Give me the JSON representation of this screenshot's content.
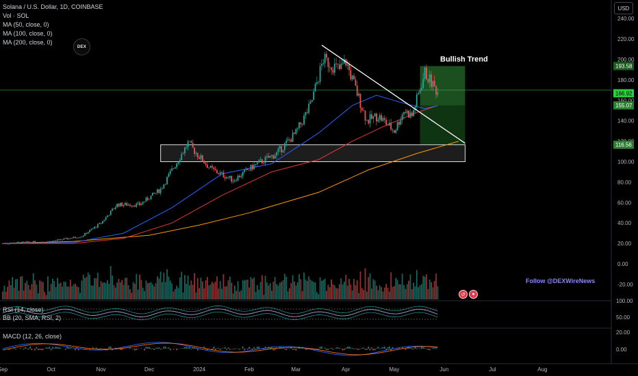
{
  "header": {
    "symbol_title": "Solana / U.S. Dollar, 1D, COINBASE",
    "volume_label": "Vol · SOL",
    "ma_labels": [
      "MA (50, close, 0)",
      "MA (100, close, 0)",
      "MA (200, close, 0)"
    ],
    "logo_text": "DEX",
    "currency": "USD"
  },
  "annotations": {
    "bullish_label": "Bullish Trend",
    "follow_text": "Follow @DEXWireNews"
  },
  "rsi_panel": {
    "rsi_label": "RSI (14, close)",
    "bb_label": "BB (20, SMA, RSI, 2)",
    "ticks": [
      "100.00",
      "50.00"
    ]
  },
  "macd_panel": {
    "label": "MACD (12, 26, close)",
    "ticks": [
      "20.00",
      "0.00"
    ]
  },
  "colors": {
    "up": "#26a69a",
    "down": "#ef5350",
    "ma50": "#2962ff",
    "ma100": "#e53935",
    "ma200": "#ff9800",
    "tp_box": "#1b5e20",
    "current_line": "#4caf50",
    "price_tag_green": "#2ecc40",
    "macd_line": "#2962ff",
    "signal_line": "#ff6d00"
  },
  "chart_data": {
    "type": "candlestick",
    "ticker": "SOL/USD",
    "interval": "1D",
    "x_ticks": [
      "Sep",
      "Oct",
      "Nov",
      "Dec",
      "2024",
      "Feb",
      "Mar",
      "Apr",
      "May",
      "Jun",
      "Jul",
      "Aug"
    ],
    "y_ticks": [
      "240.00",
      "220.00",
      "200.00",
      "180.00",
      "160.00",
      "140.00",
      "120.00",
      "100.00",
      "80.00",
      "60.00",
      "40.00",
      "20.00",
      "0.00",
      "-20.00"
    ],
    "ylim": [
      -30,
      245
    ],
    "price_path": [
      [
        "2023-09-01",
        20
      ],
      [
        "2023-10-01",
        22
      ],
      [
        "2023-10-20",
        27
      ],
      [
        "2023-11-01",
        40
      ],
      [
        "2023-11-11",
        58
      ],
      [
        "2023-11-25",
        58
      ],
      [
        "2023-12-08",
        73
      ],
      [
        "2023-12-25",
        118
      ],
      [
        "2024-01-01",
        105
      ],
      [
        "2024-01-08",
        93
      ],
      [
        "2024-01-22",
        82
      ],
      [
        "2024-02-05",
        97
      ],
      [
        "2024-02-18",
        108
      ],
      [
        "2024-03-01",
        128
      ],
      [
        "2024-03-10",
        155
      ],
      [
        "2024-03-18",
        200
      ],
      [
        "2024-03-28",
        190
      ],
      [
        "2024-04-01",
        198
      ],
      [
        "2024-04-14",
        140
      ],
      [
        "2024-04-21",
        145
      ],
      [
        "2024-05-01",
        130
      ],
      [
        "2024-05-07",
        150
      ],
      [
        "2024-05-12",
        145
      ],
      [
        "2024-05-20",
        187
      ],
      [
        "2024-05-28",
        168
      ]
    ],
    "ma50_path": [
      [
        "2023-09-01",
        20
      ],
      [
        "2023-10-15",
        21
      ],
      [
        "2023-11-15",
        30
      ],
      [
        "2023-12-15",
        55
      ],
      [
        "2024-01-15",
        88
      ],
      [
        "2024-02-15",
        98
      ],
      [
        "2024-03-15",
        128
      ],
      [
        "2024-04-05",
        155
      ],
      [
        "2024-04-20",
        165
      ],
      [
        "2024-05-05",
        158
      ],
      [
        "2024-05-20",
        152
      ],
      [
        "2024-05-28",
        155
      ]
    ],
    "ma100_path": [
      [
        "2023-09-01",
        20
      ],
      [
        "2023-10-15",
        20
      ],
      [
        "2023-11-15",
        25
      ],
      [
        "2023-12-15",
        40
      ],
      [
        "2024-01-15",
        67
      ],
      [
        "2024-02-15",
        90
      ],
      [
        "2024-03-15",
        102
      ],
      [
        "2024-04-05",
        120
      ],
      [
        "2024-04-25",
        135
      ],
      [
        "2024-05-15",
        148
      ],
      [
        "2024-05-28",
        155
      ]
    ],
    "ma200_path": [
      [
        "2023-09-01",
        20
      ],
      [
        "2023-10-15",
        22
      ],
      [
        "2023-12-01",
        28
      ],
      [
        "2024-01-01",
        38
      ],
      [
        "2024-02-01",
        50
      ],
      [
        "2024-03-15",
        70
      ],
      [
        "2024-04-15",
        92
      ],
      [
        "2024-05-15",
        108
      ],
      [
        "2024-06-10",
        120
      ]
    ],
    "resistance_trendline": [
      [
        "2024-03-17",
        214
      ],
      [
        "2024-06-14",
        118
      ]
    ],
    "support_zone": {
      "x_start": "2023-12-08",
      "x_end": "2024-06-14",
      "y_low": 100,
      "y_high": 116.56
    },
    "target_zone": {
      "x_start": "2024-05-17",
      "x_end": "2024-06-14",
      "y_low": 116.56,
      "y_high": 193.58,
      "label": "Bullish Trend"
    },
    "entry_level": 155.07,
    "current_price_line": 170,
    "price_tags": [
      "193.58",
      "166.92",
      "155.07",
      "116.56"
    ],
    "rsi_ticks": [
      100,
      50
    ],
    "macd_ticks": [
      20,
      0
    ]
  }
}
